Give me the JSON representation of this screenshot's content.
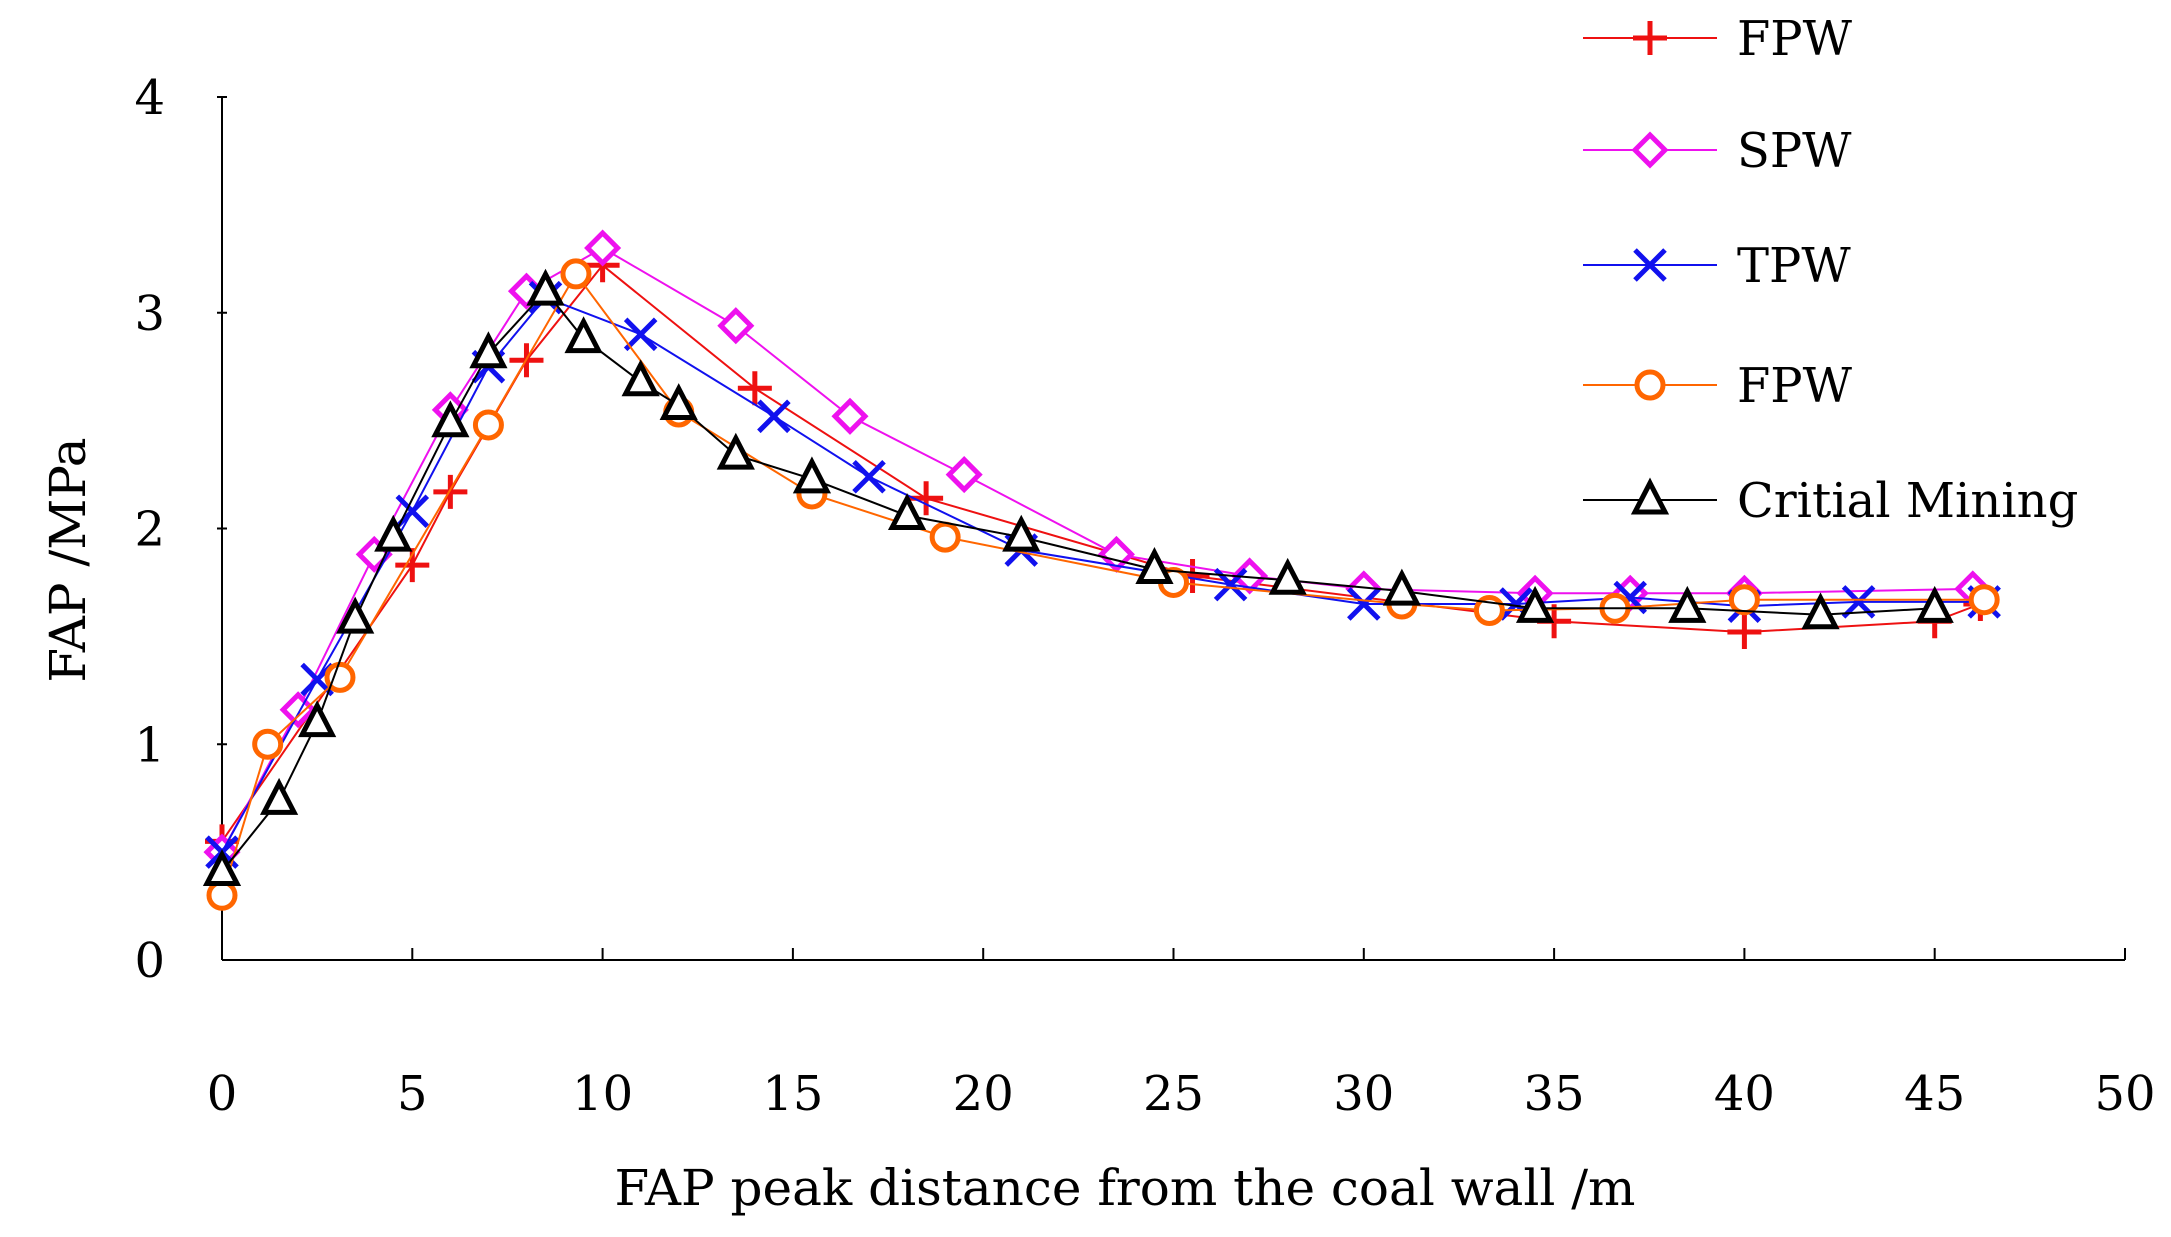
{
  "chart_data": {
    "type": "line",
    "title": "",
    "xlabel": "FAP peak distance from the coal wall /m",
    "ylabel": "FAP /MPa",
    "xlim": [
      0,
      50
    ],
    "ylim": [
      0,
      4
    ],
    "xticks": [
      "0",
      "5",
      "10",
      "15",
      "20",
      "25",
      "30",
      "35",
      "40",
      "45",
      "50"
    ],
    "yticks": [
      "0",
      "1",
      "2",
      "3",
      "4"
    ],
    "grid": false,
    "legend_position": "top-right",
    "series": [
      {
        "name": "FPW",
        "color": "#ee1111",
        "marker": "plus",
        "x": [
          0,
          5,
          6,
          8,
          10,
          14,
          18.5,
          25.5,
          35,
          40,
          45,
          46.2
        ],
        "y": [
          0.55,
          1.83,
          2.17,
          2.78,
          3.22,
          2.65,
          2.14,
          1.78,
          1.57,
          1.52,
          1.57,
          1.65
        ]
      },
      {
        "name": "SPW",
        "color": "#ee11ee",
        "marker": "diamond",
        "x": [
          0,
          2,
          4,
          6,
          8,
          10,
          13.5,
          16.5,
          19.5,
          23.5,
          27,
          30,
          34.5,
          37,
          40,
          46
        ],
        "y": [
          0.5,
          1.16,
          1.88,
          2.55,
          3.1,
          3.3,
          2.94,
          2.52,
          2.25,
          1.88,
          1.78,
          1.72,
          1.7,
          1.7,
          1.7,
          1.72
        ]
      },
      {
        "name": "TPW",
        "color": "#1111ee",
        "marker": "x",
        "x": [
          0,
          2.5,
          5,
          7,
          8.5,
          11,
          14.5,
          17,
          21,
          26.5,
          30,
          34,
          37,
          40,
          43,
          46.3
        ],
        "y": [
          0.5,
          1.3,
          2.08,
          2.75,
          3.07,
          2.9,
          2.52,
          2.24,
          1.9,
          1.74,
          1.65,
          1.65,
          1.68,
          1.64,
          1.66,
          1.66
        ]
      },
      {
        "name": "FPW",
        "color": "#ff6600",
        "marker": "circle",
        "x": [
          0,
          1.2,
          3.1,
          7,
          9.3,
          12,
          15.5,
          19,
          25,
          31,
          33.3,
          36.6,
          40,
          46.3
        ],
        "y": [
          0.3,
          1.0,
          1.31,
          2.48,
          3.18,
          2.54,
          2.16,
          1.96,
          1.75,
          1.65,
          1.62,
          1.63,
          1.67,
          1.67
        ]
      },
      {
        "name": "Critial Mining",
        "color": "#000000",
        "marker": "triangle",
        "x": [
          0,
          1.5,
          2.5,
          3.5,
          4.5,
          6,
          7,
          8.5,
          9.5,
          11,
          12,
          13.5,
          15.5,
          18,
          21,
          24.5,
          28,
          31,
          34.5,
          38.5,
          42,
          45
        ],
        "y": [
          0.41,
          0.74,
          1.1,
          1.58,
          1.96,
          2.49,
          2.81,
          3.1,
          2.88,
          2.68,
          2.57,
          2.34,
          2.23,
          2.06,
          1.96,
          1.81,
          1.76,
          1.71,
          1.63,
          1.63,
          1.6,
          1.63
        ]
      }
    ]
  }
}
